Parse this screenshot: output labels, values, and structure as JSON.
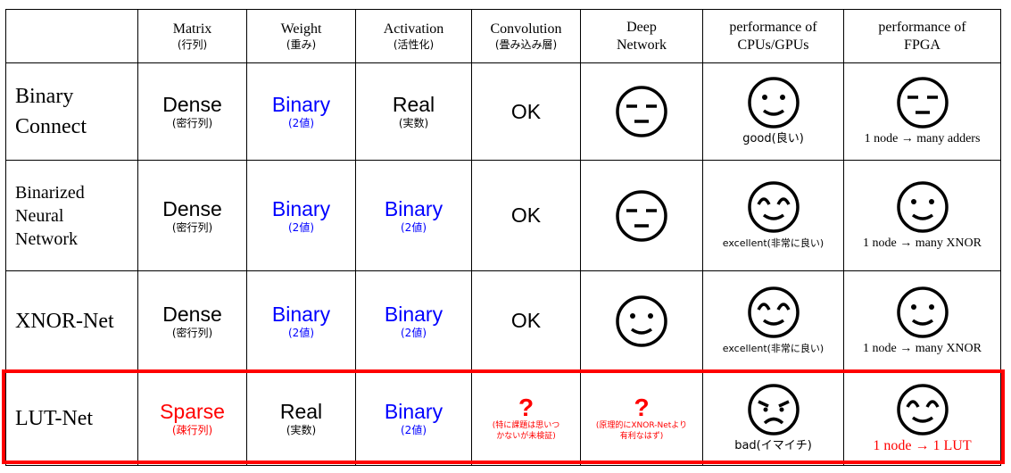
{
  "headers": {
    "corner": "",
    "matrix": {
      "main": "Matrix",
      "sub": "(行列)"
    },
    "weight": {
      "main": "Weight",
      "sub": "(重み)"
    },
    "activation": {
      "main": "Activation",
      "sub": "(活性化)"
    },
    "convolution": {
      "main": "Convolution",
      "sub": "(畳み込み層)"
    },
    "deep": {
      "line1": "Deep",
      "line2": "Network"
    },
    "cpu": {
      "line1": "performance of",
      "line2": "CPUs/GPUs"
    },
    "fpga": {
      "line1": "performance of",
      "line2": "FPGA"
    }
  },
  "rows": [
    {
      "name_lines": [
        "Binary",
        "Connect"
      ],
      "matrix": {
        "main": "Dense",
        "sub": "(密行列)"
      },
      "weight": {
        "main": "Binary",
        "sub": "(2値)"
      },
      "activation": {
        "main": "Real",
        "sub": "(実数)"
      },
      "convolution": "OK",
      "deep_face": "neutral-face",
      "cpu_face": "smile-face",
      "cpu_caption": "good(良い)",
      "fpga_face": "neutral-face",
      "fpga_caption": "1 node → many adders"
    },
    {
      "name_lines": [
        "Binarized",
        "Neural",
        "Network"
      ],
      "matrix": {
        "main": "Dense",
        "sub": "(密行列)"
      },
      "weight": {
        "main": "Binary",
        "sub": "(2値)"
      },
      "activation": {
        "main": "Binary",
        "sub": "(2値)"
      },
      "convolution": "OK",
      "deep_face": "neutral-face",
      "cpu_face": "happy-face",
      "cpu_caption": "excellent(非常に良い)",
      "fpga_face": "smile-face",
      "fpga_caption": "1 node → many XNOR"
    },
    {
      "name_lines": [
        "XNOR-Net"
      ],
      "matrix": {
        "main": "Dense",
        "sub": "(密行列)"
      },
      "weight": {
        "main": "Binary",
        "sub": "(2値)"
      },
      "activation": {
        "main": "Binary",
        "sub": "(2値)"
      },
      "convolution": "OK",
      "deep_face": "smile-face",
      "cpu_face": "happy-face",
      "cpu_caption": "excellent(非常に良い)",
      "fpga_face": "smile-face",
      "fpga_caption": "1 node → many XNOR"
    },
    {
      "name_lines": [
        "LUT-Net"
      ],
      "matrix": {
        "main": "Sparse",
        "sub": "(疎行列)"
      },
      "weight": {
        "main": "Real",
        "sub": "(実数)"
      },
      "activation": {
        "main": "Binary",
        "sub": "(2値)"
      },
      "convolution_mark": "?",
      "convolution_note": [
        "(特に課題は思いつ",
        "かないが未検証)"
      ],
      "deep_mark": "?",
      "deep_note": [
        "(原理的にXNOR-Netより",
        "有利なはず)"
      ],
      "cpu_face": "sad-face",
      "cpu_caption": "bad(イマイチ)",
      "fpga_face": "happy-face",
      "fpga_caption": "1 node → 1 LUT"
    }
  ],
  "colors": {
    "binary": "#0000ff",
    "lut_highlight": "#ff0000",
    "text": "#000000"
  }
}
